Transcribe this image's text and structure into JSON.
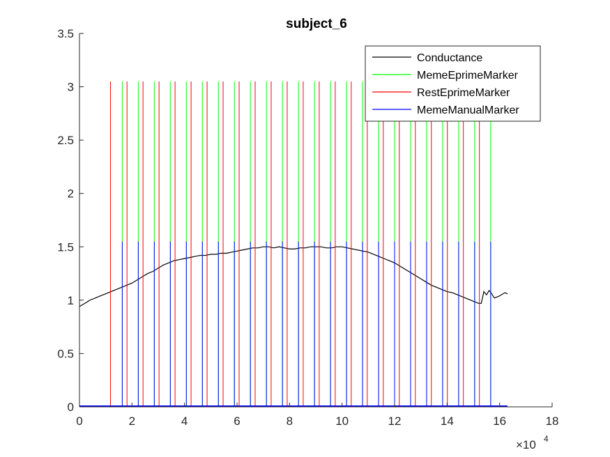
{
  "chart_data": {
    "type": "line",
    "title": "subject_6",
    "xlabel": "",
    "ylabel": "",
    "xlim": [
      0,
      180000
    ],
    "ylim": [
      0,
      3.5
    ],
    "x_exponent": {
      "base": "×10",
      "power": "4"
    },
    "x_ticks": [
      0,
      20000,
      40000,
      60000,
      80000,
      100000,
      120000,
      140000,
      160000,
      180000
    ],
    "x_tick_labels": [
      "0",
      "2",
      "4",
      "6",
      "8",
      "10",
      "12",
      "14",
      "16",
      "18"
    ],
    "y_ticks": [
      0,
      0.5,
      1,
      1.5,
      2,
      2.5,
      3,
      3.5
    ],
    "y_tick_labels": [
      "0",
      "0.5",
      "1",
      "1.5",
      "2",
      "2.5",
      "3",
      "3.5"
    ],
    "grid": false,
    "legend_position": "top-right",
    "series": [
      {
        "name": "Conductance",
        "color": "#000000",
        "kind": "line",
        "points": [
          [
            0,
            0.94
          ],
          [
            2000,
            0.97
          ],
          [
            4000,
            1.0
          ],
          [
            6000,
            1.02
          ],
          [
            8000,
            1.04
          ],
          [
            10000,
            1.06
          ],
          [
            12000,
            1.08
          ],
          [
            14000,
            1.1
          ],
          [
            16000,
            1.12
          ],
          [
            18000,
            1.14
          ],
          [
            20000,
            1.16
          ],
          [
            22000,
            1.19
          ],
          [
            24000,
            1.22
          ],
          [
            26000,
            1.25
          ],
          [
            28000,
            1.27
          ],
          [
            30000,
            1.3
          ],
          [
            32000,
            1.33
          ],
          [
            34000,
            1.35
          ],
          [
            36000,
            1.37
          ],
          [
            38000,
            1.38
          ],
          [
            40000,
            1.39
          ],
          [
            42000,
            1.4
          ],
          [
            44000,
            1.41
          ],
          [
            46000,
            1.42
          ],
          [
            48000,
            1.42
          ],
          [
            50000,
            1.43
          ],
          [
            52000,
            1.43
          ],
          [
            54000,
            1.44
          ],
          [
            56000,
            1.44
          ],
          [
            58000,
            1.45
          ],
          [
            60000,
            1.46
          ],
          [
            62000,
            1.47
          ],
          [
            64000,
            1.48
          ],
          [
            66000,
            1.49
          ],
          [
            68000,
            1.49
          ],
          [
            70000,
            1.5
          ],
          [
            72000,
            1.5
          ],
          [
            74000,
            1.49
          ],
          [
            76000,
            1.5
          ],
          [
            78000,
            1.49
          ],
          [
            80000,
            1.48
          ],
          [
            82000,
            1.48
          ],
          [
            84000,
            1.49
          ],
          [
            86000,
            1.49
          ],
          [
            88000,
            1.5
          ],
          [
            90000,
            1.5
          ],
          [
            92000,
            1.5
          ],
          [
            94000,
            1.49
          ],
          [
            96000,
            1.49
          ],
          [
            98000,
            1.5
          ],
          [
            100000,
            1.5
          ],
          [
            102000,
            1.49
          ],
          [
            104000,
            1.48
          ],
          [
            106000,
            1.47
          ],
          [
            108000,
            1.46
          ],
          [
            110000,
            1.45
          ],
          [
            112000,
            1.43
          ],
          [
            114000,
            1.41
          ],
          [
            116000,
            1.39
          ],
          [
            118000,
            1.37
          ],
          [
            120000,
            1.35
          ],
          [
            122000,
            1.32
          ],
          [
            124000,
            1.29
          ],
          [
            126000,
            1.26
          ],
          [
            128000,
            1.23
          ],
          [
            130000,
            1.2
          ],
          [
            132000,
            1.17
          ],
          [
            134000,
            1.14
          ],
          [
            136000,
            1.12
          ],
          [
            138000,
            1.1
          ],
          [
            140000,
            1.08
          ],
          [
            142000,
            1.07
          ],
          [
            144000,
            1.05
          ],
          [
            146000,
            1.03
          ],
          [
            148000,
            1.01
          ],
          [
            150000,
            0.99
          ],
          [
            152000,
            0.97
          ],
          [
            153000,
            0.97
          ],
          [
            154000,
            1.08
          ],
          [
            155000,
            1.05
          ],
          [
            156000,
            1.09
          ],
          [
            157000,
            1.06
          ],
          [
            158000,
            1.02
          ],
          [
            159000,
            1.03
          ],
          [
            160000,
            1.04
          ],
          [
            162000,
            1.07
          ],
          [
            163000,
            1.06
          ]
        ]
      },
      {
        "name": "MemeEprimeMarker",
        "color": "#00ff00",
        "kind": "impulse",
        "height": 3.05,
        "x": [
          16300,
          22400,
          28500,
          34600,
          40700,
          46800,
          52900,
          59000,
          65100,
          71200,
          77300,
          83400,
          89500,
          95600,
          101700,
          107800,
          113900,
          120000,
          126100,
          132200,
          138300,
          144400,
          150500,
          156600
        ]
      },
      {
        "name": "RestEprimeMarker",
        "color": "#ff0000",
        "kind": "impulse",
        "height": 3.05,
        "x": [
          11800,
          18100,
          24200,
          30300,
          36400,
          42500,
          48600,
          54700,
          60800,
          66900,
          73000,
          79100,
          85200,
          91300,
          97400,
          103500,
          109600,
          115700,
          121800,
          127900,
          134000,
          140100,
          146200,
          152300
        ]
      },
      {
        "name": "MemeManualMarker",
        "color": "#0000ff",
        "kind": "impulse",
        "height": 1.55,
        "x": [
          16300,
          22400,
          28500,
          34600,
          40700,
          46800,
          52900,
          59000,
          65100,
          71200,
          77300,
          83400,
          89500,
          95600,
          101700,
          107800,
          113900,
          120000,
          126100,
          132200,
          138300,
          144400,
          150500,
          156600
        ]
      }
    ]
  }
}
